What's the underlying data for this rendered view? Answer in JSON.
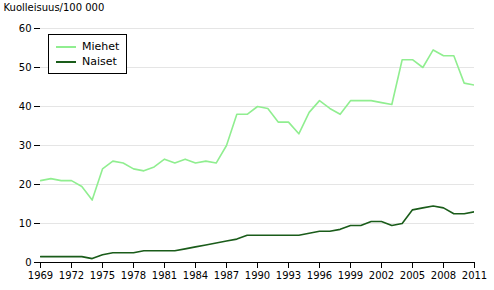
{
  "chart_data": {
    "type": "line",
    "ylabel": "Kuolleisuus/100 000",
    "x": [
      1969,
      1970,
      1971,
      1972,
      1973,
      1974,
      1975,
      1976,
      1977,
      1978,
      1979,
      1980,
      1981,
      1982,
      1983,
      1984,
      1985,
      1986,
      1987,
      1988,
      1989,
      1990,
      1991,
      1992,
      1993,
      1994,
      1995,
      1996,
      1997,
      1998,
      1999,
      2000,
      2001,
      2002,
      2003,
      2004,
      2005,
      2006,
      2007,
      2008,
      2009,
      2010,
      2011
    ],
    "series": [
      {
        "name": "Miehet",
        "color": "#90EE90",
        "values": [
          21.0,
          21.5,
          21.0,
          21.0,
          19.5,
          16.0,
          24.0,
          26.0,
          25.5,
          24.0,
          23.5,
          24.5,
          26.5,
          25.5,
          26.5,
          25.5,
          26.0,
          25.5,
          30.0,
          38.0,
          38.0,
          40.0,
          39.5,
          36.0,
          36.0,
          33.0,
          38.5,
          41.5,
          39.5,
          38.0,
          41.5,
          41.5,
          41.5,
          41.0,
          40.5,
          52.0,
          52.0,
          50.0,
          54.5,
          53.0,
          53.0,
          46.0,
          45.5
        ]
      },
      {
        "name": "Naiset",
        "color": "#1a5c1a",
        "values": [
          1.5,
          1.5,
          1.5,
          1.5,
          1.5,
          1.0,
          2.0,
          2.5,
          2.5,
          2.5,
          3.0,
          3.0,
          3.0,
          3.0,
          3.5,
          4.0,
          4.5,
          5.0,
          5.5,
          6.0,
          7.0,
          7.0,
          7.0,
          7.0,
          7.0,
          7.0,
          7.5,
          8.0,
          8.0,
          8.5,
          9.5,
          9.5,
          10.5,
          10.5,
          9.5,
          10.0,
          13.5,
          14.0,
          14.5,
          14.0,
          12.5,
          12.5,
          13.0
        ]
      }
    ],
    "xlim": [
      1969,
      2011
    ],
    "xticks": [
      1969,
      1972,
      1975,
      1978,
      1981,
      1984,
      1987,
      1990,
      1993,
      1996,
      1999,
      2002,
      2005,
      2008,
      2011
    ],
    "ylim": [
      0,
      60
    ],
    "yticks": [
      0,
      10,
      20,
      30,
      40,
      50,
      60
    ],
    "grid": true,
    "legend": "upper left"
  }
}
